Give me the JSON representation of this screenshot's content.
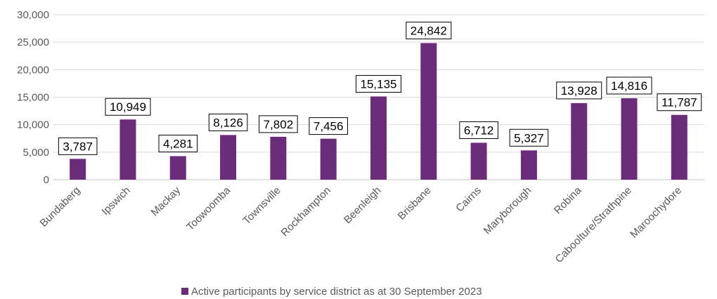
{
  "chart_data": {
    "type": "bar",
    "categories": [
      "Bundaberg",
      "Ipswich",
      "Mackay",
      "Toowoomba",
      "Townsville",
      "Rockhampton",
      "Beenleigh",
      "Brisbane",
      "Cairns",
      "Maryborough",
      "Robina",
      "Caboolture/Strathpine",
      "Maroochydore"
    ],
    "series": [
      {
        "name": "Active participants by service district as at 30 September 2023",
        "values": [
          3787,
          10949,
          4281,
          8126,
          7802,
          7456,
          15135,
          24842,
          6712,
          5327,
          13928,
          14816,
          11787
        ],
        "labels": [
          "3,787",
          "10,949",
          "4,281",
          "8,126",
          "7,802",
          "7,456",
          "15,135",
          "24,842",
          "6,712",
          "5,327",
          "13,928",
          "14,816",
          "11,787"
        ],
        "color": "#6b2c7c"
      }
    ],
    "yticks": [
      "0",
      "5,000",
      "10,000",
      "15,000",
      "20,000",
      "25,000",
      "30,000"
    ],
    "ylim": [
      0,
      30000
    ],
    "grid": true,
    "gridColor": "#d9d9d9",
    "legend": "bottom"
  }
}
